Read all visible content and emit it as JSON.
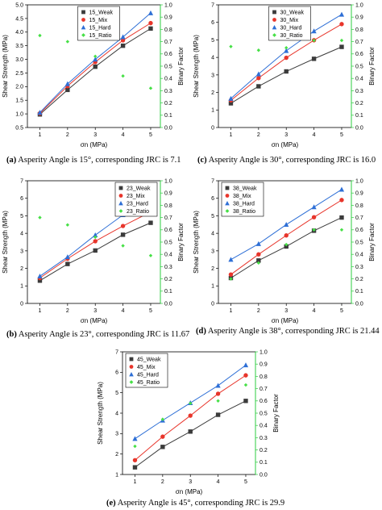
{
  "figure": {
    "captions": [
      {
        "letter": "(a)",
        "text": " Asperity Angle is 15°, corresponding JRC is 7.1"
      },
      {
        "letter": "(c)",
        "text": " Asperity Angle is 30°, corresponding JRC is 16.0"
      },
      {
        "letter": "(b)",
        "text": " Asperity Angle is 23°, corresponding JRC is 11.67"
      },
      {
        "letter": "(d)",
        "text": " Asperity Angle is 38°, corresponding JRC is 21.44"
      },
      {
        "letter": "(e)",
        "text": " Asperity Angle is 45°, corresponding JRC is 29.9"
      }
    ]
  },
  "colors": {
    "weak": "#3b3b3b",
    "mix": "#e8352b",
    "hard": "#2e6fd6",
    "ratio": "#46e046",
    "right_axis": "#2ecc40"
  },
  "chart_data": [
    {
      "type": "line",
      "id": "a",
      "xlabel": "σn (MPa)",
      "ylabel": "Shear Strength (MPa)",
      "y2label": "Binary Factor",
      "x": [
        1,
        2,
        3,
        4,
        5
      ],
      "xlim": [
        0.55,
        5.35
      ],
      "ylim": [
        0.5,
        5.0
      ],
      "y2lim": [
        0.0,
        1.0
      ],
      "yticks": [
        "0.5",
        "1.0",
        "1.5",
        "2.0",
        "2.5",
        "3.0",
        "3.5",
        "4.0",
        "4.5",
        "5.0"
      ],
      "y2ticks": [
        "0.0",
        "0.1",
        "0.2",
        "0.3",
        "0.4",
        "0.5",
        "0.6",
        "0.7",
        "0.8",
        "0.9",
        "1.0"
      ],
      "legend": "top-center",
      "series": [
        {
          "name": "15_Weak",
          "key": "weak",
          "marker": "square",
          "axis": "left",
          "values": [
            0.98,
            1.88,
            2.73,
            3.5,
            4.13
          ]
        },
        {
          "name": "15_Mix",
          "key": "mix",
          "marker": "circle",
          "axis": "left",
          "values": [
            1.02,
            2.02,
            2.9,
            3.7,
            4.33
          ]
        },
        {
          "name": "15_Hard",
          "key": "hard",
          "marker": "triangle",
          "axis": "left",
          "values": [
            1.05,
            2.1,
            3.0,
            3.82,
            4.7
          ]
        },
        {
          "name": "15_Ratio",
          "key": "ratio",
          "marker": "diamond",
          "axis": "right",
          "values": [
            0.75,
            0.7,
            0.58,
            0.42,
            0.32
          ]
        }
      ]
    },
    {
      "type": "line",
      "id": "c",
      "xlabel": "σn (MPa)",
      "ylabel": "Shear Strength (MPa)",
      "y2label": "Binary Factor",
      "x": [
        1,
        2,
        3,
        4,
        5
      ],
      "xlim": [
        0.55,
        5.35
      ],
      "ylim": [
        0,
        7
      ],
      "y2lim": [
        0.0,
        1.0
      ],
      "yticks": [
        "0",
        "1",
        "2",
        "3",
        "4",
        "5",
        "6",
        "7"
      ],
      "y2ticks": [
        "0.0",
        "0.1",
        "0.2",
        "0.3",
        "0.4",
        "0.5",
        "0.6",
        "0.7",
        "0.8",
        "0.9",
        "1.0"
      ],
      "legend": "top-center",
      "series": [
        {
          "name": "30_Weak",
          "key": "weak",
          "marker": "square",
          "axis": "left",
          "values": [
            1.38,
            2.35,
            3.2,
            3.92,
            4.6
          ]
        },
        {
          "name": "30_Mix",
          "key": "mix",
          "marker": "circle",
          "axis": "left",
          "values": [
            1.55,
            2.82,
            3.98,
            4.98,
            5.9
          ]
        },
        {
          "name": "30_Hard",
          "key": "hard",
          "marker": "triangle",
          "axis": "left",
          "values": [
            1.65,
            3.05,
            4.38,
            5.5,
            6.45
          ]
        },
        {
          "name": "30_Ratio",
          "key": "ratio",
          "marker": "diamond",
          "axis": "right",
          "values": [
            0.66,
            0.63,
            0.65,
            0.71,
            0.71
          ]
        }
      ]
    },
    {
      "type": "line",
      "id": "b",
      "xlabel": "σn (MPa)",
      "ylabel": "Shear Strength (MPa)",
      "y2label": "Binary Factor",
      "x": [
        1,
        2,
        3,
        4,
        5
      ],
      "xlim": [
        0.55,
        5.35
      ],
      "ylim": [
        0,
        7
      ],
      "y2lim": [
        0.0,
        1.0
      ],
      "yticks": [
        "0",
        "1",
        "2",
        "3",
        "4",
        "5",
        "6",
        "7"
      ],
      "y2ticks": [
        "0.0",
        "0.1",
        "0.2",
        "0.3",
        "0.4",
        "0.5",
        "0.6",
        "0.7",
        "0.8",
        "0.9",
        "1.0"
      ],
      "legend": "top-right",
      "series": [
        {
          "name": "23_Weak",
          "key": "weak",
          "marker": "square",
          "axis": "left",
          "values": [
            1.3,
            2.25,
            3.02,
            3.92,
            4.6
          ]
        },
        {
          "name": "23_Mix",
          "key": "mix",
          "marker": "circle",
          "axis": "left",
          "values": [
            1.45,
            2.55,
            3.55,
            4.42,
            5.22
          ]
        },
        {
          "name": "23_Hard",
          "key": "hard",
          "marker": "triangle",
          "axis": "left",
          "values": [
            1.55,
            2.65,
            3.9,
            5.05,
            6.15
          ]
        },
        {
          "name": "23_Ratio",
          "key": "ratio",
          "marker": "diamond",
          "axis": "right",
          "values": [
            0.7,
            0.64,
            0.54,
            0.47,
            0.39
          ]
        }
      ]
    },
    {
      "type": "line",
      "id": "d",
      "xlabel": "σn (MPa)",
      "ylabel": "Shear Strength (MPa)",
      "y2label": "Binary Factor",
      "x": [
        1,
        2,
        3,
        4,
        5
      ],
      "xlim": [
        0.55,
        5.35
      ],
      "ylim": [
        0,
        7
      ],
      "y2lim": [
        0.0,
        1.0
      ],
      "yticks": [
        "0",
        "1",
        "2",
        "3",
        "4",
        "5",
        "6",
        "7"
      ],
      "y2ticks": [
        "0.0",
        "0.1",
        "0.2",
        "0.3",
        "0.4",
        "0.5",
        "0.6",
        "0.7",
        "0.8",
        "0.9",
        "1.0"
      ],
      "legend": "top-left",
      "series": [
        {
          "name": "38_Weak",
          "key": "weak",
          "marker": "square",
          "axis": "left",
          "values": [
            1.45,
            2.45,
            3.25,
            4.15,
            4.9
          ]
        },
        {
          "name": "38_Mix",
          "key": "mix",
          "marker": "circle",
          "axis": "left",
          "values": [
            1.65,
            2.8,
            3.88,
            4.92,
            5.9
          ]
        },
        {
          "name": "38_Hard",
          "key": "hard",
          "marker": "triangle",
          "axis": "left",
          "values": [
            2.5,
            3.4,
            4.5,
            5.5,
            6.5
          ]
        },
        {
          "name": "38_Ratio",
          "key": "ratio",
          "marker": "diamond",
          "axis": "right",
          "values": [
            0.2,
            0.33,
            0.48,
            0.6,
            0.6
          ]
        }
      ]
    },
    {
      "type": "line",
      "id": "e",
      "xlabel": "σn (MPa)",
      "ylabel": "Shear Strength (MPa)",
      "y2label": "Binary Factor",
      "x": [
        1,
        2,
        3,
        4,
        5
      ],
      "xlim": [
        0.55,
        5.35
      ],
      "ylim": [
        1,
        7
      ],
      "y2lim": [
        0.0,
        1.0
      ],
      "yticks": [
        "1",
        "2",
        "3",
        "4",
        "5",
        "6",
        "7"
      ],
      "y2ticks": [
        "0.0",
        "0.1",
        "0.2",
        "0.3",
        "0.4",
        "0.5",
        "0.6",
        "0.7",
        "0.8",
        "0.9",
        "1.0"
      ],
      "legend": "top-left",
      "series": [
        {
          "name": "45_Weak",
          "key": "weak",
          "marker": "square",
          "axis": "left",
          "values": [
            1.35,
            2.35,
            3.1,
            3.92,
            4.6
          ]
        },
        {
          "name": "45_Mix",
          "key": "mix",
          "marker": "circle",
          "axis": "left",
          "values": [
            1.7,
            2.85,
            3.88,
            4.95,
            5.85
          ]
        },
        {
          "name": "45_Hard",
          "key": "hard",
          "marker": "triangle",
          "axis": "left",
          "values": [
            2.75,
            3.65,
            4.5,
            5.35,
            6.35
          ]
        },
        {
          "name": "45_Ratio",
          "key": "ratio",
          "marker": "diamond",
          "axis": "right",
          "values": [
            0.23,
            0.45,
            0.58,
            0.6,
            0.73
          ]
        }
      ]
    }
  ]
}
